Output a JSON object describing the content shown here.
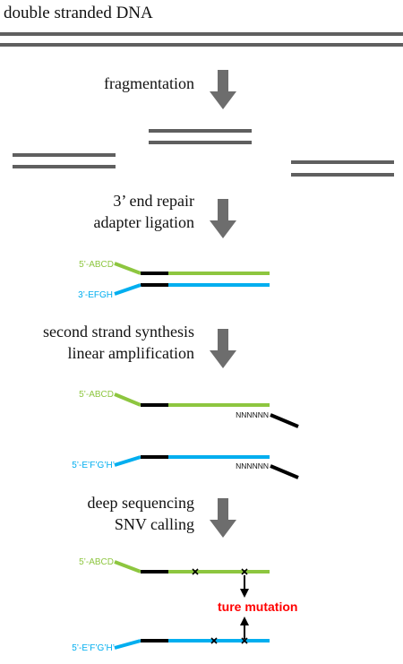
{
  "title": "double stranded DNA",
  "steps": [
    {
      "line1": "fragmentation"
    },
    {
      "line1": "3’ end repair",
      "line2": "adapter ligation"
    },
    {
      "line1": "second strand synthesis",
      "line2": "linear amplification"
    },
    {
      "line1": "deep sequencing",
      "line2": "SNV calling"
    }
  ],
  "labels": {
    "top_5p": "5’-ABCD",
    "bottom_3p": "3’-EFGH",
    "bottom_5p_prime": "5’-E’F’G’H’",
    "random_primer": "NNNNNN",
    "mutation": "ture mutation"
  },
  "colors": {
    "dna_gray": "#5f5f5f",
    "top_strand_green": "#8dc63f",
    "bottom_strand_blue": "#00aeef",
    "adapter_black": "#000000",
    "mutation_red": "#ff0000",
    "arrow_gray": "#6d6d6d"
  }
}
